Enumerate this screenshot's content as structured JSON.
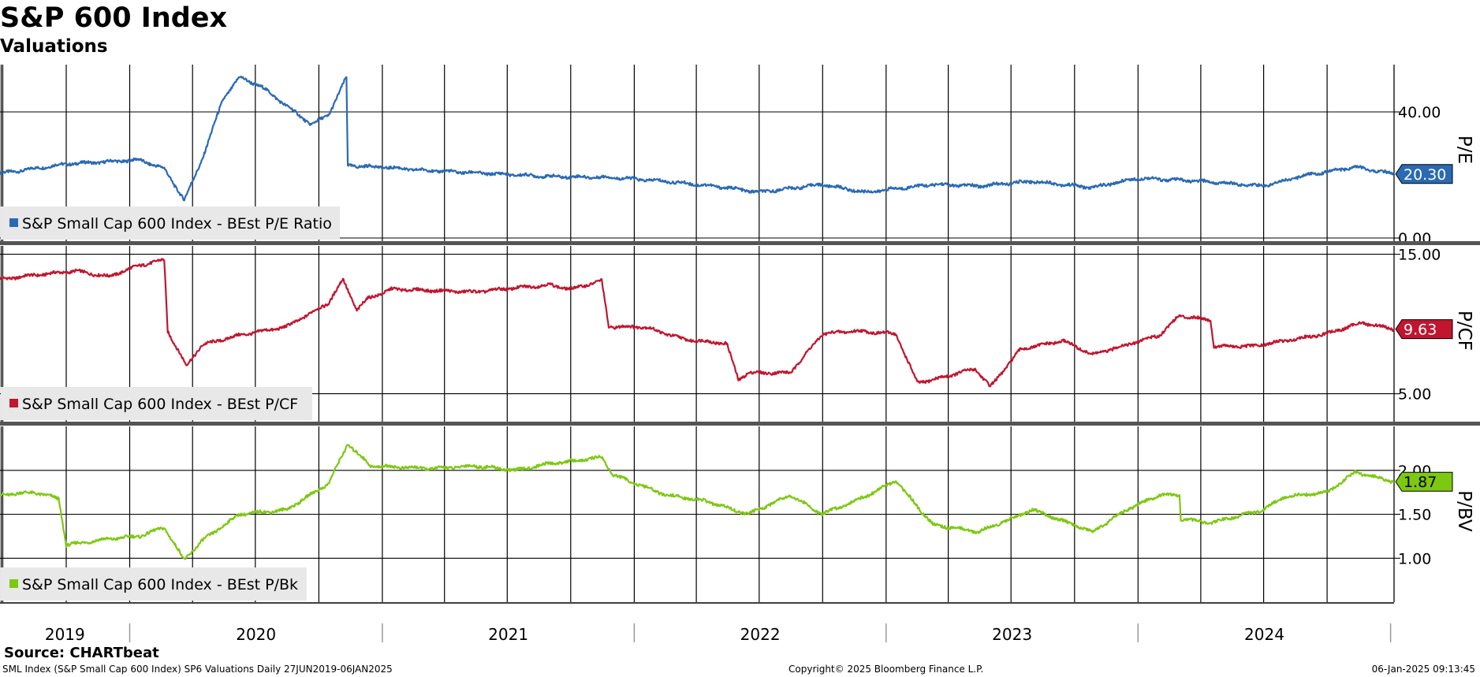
{
  "title": "S&P 600 Index",
  "subtitle": "Valuations",
  "footer": {
    "source": "Source: CHARTbeat",
    "description": "SML Index (S&P Small Cap 600 Index) SP6 Valuations  Daily 27JUN2019-06JAN2025",
    "copyright": "Copyright© 2025 Bloomberg Finance L.P.",
    "timestamp": "06-Jan-2025 09:13:45"
  },
  "chart_data": [
    {
      "type": "line",
      "axis_label": "P/E",
      "legend": "S&P Small Cap 600 Index - BEst P/E Ratio",
      "color": "#2a6ab4",
      "last_value_label": "20.30",
      "ylim": [
        -1,
        55
      ],
      "ticks": [
        0,
        40
      ],
      "tick_labels": [
        "0.00",
        "40.00"
      ],
      "grid": true,
      "legend_position": "bottom-left",
      "x": [
        "2019-06-27",
        "2019-08-15",
        "2019-10-01",
        "2019-12-01",
        "2020-01-15",
        "2020-02-20",
        "2020-03-20",
        "2020-04-15",
        "2020-05-15",
        "2020-06-08",
        "2020-07-10",
        "2020-08-15",
        "2020-09-20",
        "2020-10-15",
        "2020-11-10",
        "2020-11-12",
        "2020-12-31",
        "2021-03-01",
        "2021-06-01",
        "2021-09-01",
        "2021-12-01",
        "2022-02-15",
        "2022-05-15",
        "2022-07-01",
        "2022-09-30",
        "2022-12-01",
        "2023-03-10",
        "2023-05-15",
        "2023-08-01",
        "2023-10-27",
        "2024-01-01",
        "2024-04-01",
        "2024-06-30",
        "2024-09-01",
        "2024-11-11",
        "2025-01-06"
      ],
      "values": [
        20.5,
        22,
        23.5,
        24.2,
        24.8,
        22,
        12,
        25,
        44,
        51,
        48,
        42,
        36,
        39,
        51,
        23,
        22.5,
        21.5,
        20.5,
        19.5,
        19.2,
        18,
        16,
        14.5,
        17,
        14.5,
        17,
        16.5,
        18,
        16,
        19,
        18,
        16.5,
        20,
        22.5,
        20.3
      ]
    },
    {
      "type": "line",
      "axis_label": "P/CF",
      "legend": "S&P Small Cap 600 Index - BEst P/CF",
      "color": "#c0162f",
      "last_value_label": "9.63",
      "ylim": [
        3,
        15.6
      ],
      "ticks": [
        5,
        15
      ],
      "tick_labels": [
        "5.00",
        "15.00"
      ],
      "grid": true,
      "legend_position": "bottom-left",
      "x": [
        "2019-06-27",
        "2019-08-15",
        "2019-10-15",
        "2019-12-01",
        "2020-01-15",
        "2020-02-20",
        "2020-02-25",
        "2020-03-23",
        "2020-04-15",
        "2020-06-08",
        "2020-08-15",
        "2020-10-15",
        "2020-11-05",
        "2020-11-25",
        "2020-12-10",
        "2021-01-15",
        "2021-03-15",
        "2021-05-15",
        "2021-07-15",
        "2021-09-01",
        "2021-10-01",
        "2021-11-15",
        "2021-11-25",
        "2022-01-15",
        "2022-03-15",
        "2022-05-15",
        "2022-06-01",
        "2022-06-15",
        "2022-08-15",
        "2022-10-01",
        "2022-11-15",
        "2023-01-15",
        "2023-02-15",
        "2023-03-10",
        "2023-05-10",
        "2023-06-01",
        "2023-07-15",
        "2023-09-15",
        "2023-10-27",
        "2023-12-15",
        "2024-02-01",
        "2024-03-01",
        "2024-04-15",
        "2024-04-20",
        "2024-06-15",
        "2024-08-01",
        "2024-10-01",
        "2024-11-20",
        "2025-01-06"
      ],
      "values": [
        13.2,
        13.5,
        13.8,
        13.4,
        14.2,
        14.6,
        9.5,
        7,
        8.5,
        9.2,
        9.8,
        11.5,
        13.2,
        11,
        11.8,
        12.5,
        12.4,
        12.3,
        12.6,
        12.8,
        12.5,
        13.1,
        9.8,
        9.8,
        8.9,
        8.6,
        6,
        6.5,
        6.5,
        9.3,
        9.5,
        9.3,
        5.8,
        6,
        6.8,
        5.5,
        8.2,
        8.8,
        7.8,
        8.5,
        9.2,
        10.6,
        10.3,
        8.4,
        8.4,
        8.8,
        9.3,
        10.1,
        9.63
      ]
    },
    {
      "type": "line",
      "axis_label": "P/BV",
      "legend": "S&P Small Cap 600 Index - BEst P/Bk",
      "color": "#7dc811",
      "last_value_label": "1.87",
      "ylim": [
        0.5,
        2.5
      ],
      "ticks": [
        1,
        1.5,
        2
      ],
      "tick_labels": [
        "1.00",
        "1.50",
        "2.00"
      ],
      "grid": true,
      "legend_position": "bottom-left",
      "x": [
        "2019-06-27",
        "2019-08-15",
        "2019-09-20",
        "2019-10-01",
        "2019-12-01",
        "2020-01-15",
        "2020-02-20",
        "2020-03-20",
        "2020-04-15",
        "2020-06-08",
        "2020-08-15",
        "2020-10-15",
        "2020-11-12",
        "2020-12-15",
        "2021-03-15",
        "2021-05-15",
        "2021-07-15",
        "2021-09-01",
        "2021-10-01",
        "2021-11-15",
        "2021-12-01",
        "2022-02-15",
        "2022-04-15",
        "2022-06-15",
        "2022-08-15",
        "2022-09-30",
        "2022-12-01",
        "2023-01-15",
        "2023-03-10",
        "2023-05-15",
        "2023-08-01",
        "2023-10-27",
        "2023-12-15",
        "2024-02-01",
        "2024-03-01",
        "2024-03-03",
        "2024-04-15",
        "2024-06-30",
        "2024-08-01",
        "2024-10-01",
        "2024-11-11",
        "2025-01-06"
      ],
      "values": [
        1.72,
        1.75,
        1.68,
        1.15,
        1.22,
        1.25,
        1.35,
        0.98,
        1.2,
        1.5,
        1.55,
        1.85,
        2.3,
        2.05,
        2.02,
        2.05,
        2.0,
        2.08,
        2.1,
        2.15,
        1.95,
        1.72,
        1.65,
        1.5,
        1.72,
        1.5,
        1.7,
        1.88,
        1.38,
        1.3,
        1.55,
        1.3,
        1.55,
        1.72,
        1.72,
        1.45,
        1.4,
        1.55,
        1.7,
        1.75,
        1.98,
        1.87
      ]
    }
  ],
  "x_axis": {
    "year_labels": [
      "2019",
      "2020",
      "2021",
      "2022",
      "2023",
      "2024"
    ],
    "range": [
      "2019-06-27",
      "2025-01-06"
    ]
  }
}
